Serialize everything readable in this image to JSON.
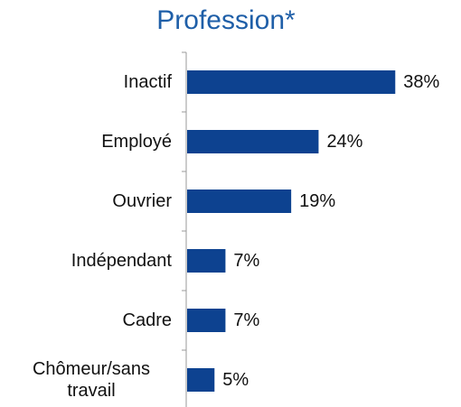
{
  "chart_data": {
    "type": "bar",
    "orientation": "horizontal",
    "title": "Profession*",
    "categories": [
      "Inactif",
      "Employé",
      "Ouvrier",
      "Indépendant",
      "Cadre",
      "Chômeur/sans travail"
    ],
    "values": [
      38,
      24,
      19,
      7,
      7,
      5
    ],
    "value_labels": [
      "38%",
      "24%",
      "19%",
      "7%",
      "7%",
      "5%"
    ],
    "color": "#0d4290",
    "title_color": "#1f5fa8",
    "xlim": [
      0,
      50
    ]
  }
}
